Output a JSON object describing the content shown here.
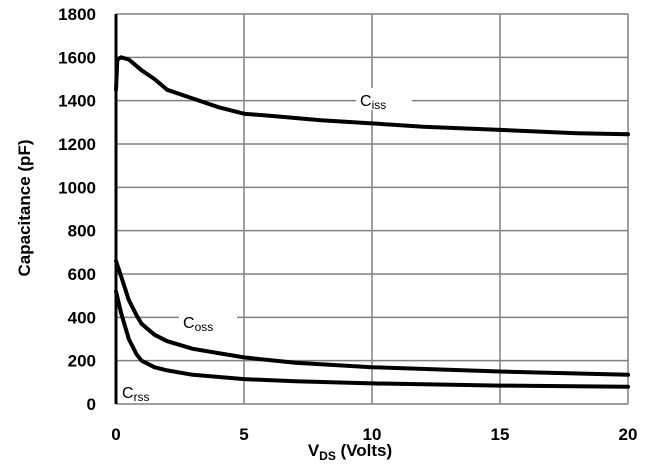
{
  "chart_data": {
    "type": "line",
    "title": "",
    "xlabel": {
      "main": "V",
      "sub": "DS",
      "rest": " (Volts)"
    },
    "ylabel": "Capacitance (pF)",
    "xlim": [
      0,
      20
    ],
    "ylim": [
      0,
      1800
    ],
    "x_ticks": [
      "0",
      "5",
      "10",
      "15",
      "20"
    ],
    "y_ticks": [
      "0",
      "200",
      "400",
      "600",
      "800",
      "1000",
      "1200",
      "1400",
      "1600",
      "1800"
    ],
    "grid": true,
    "legend": "inline labels",
    "colors": {
      "line": "#000000",
      "grid": "#808080",
      "background": "#ffffff"
    },
    "series": [
      {
        "name": "Ciss",
        "label_main": "C",
        "label_sub": "iss",
        "points": [
          [
            0,
            1450
          ],
          [
            0.05,
            1590
          ],
          [
            0.2,
            1600
          ],
          [
            0.5,
            1590
          ],
          [
            1,
            1540
          ],
          [
            1.5,
            1500
          ],
          [
            2,
            1450
          ],
          [
            3,
            1410
          ],
          [
            4,
            1370
          ],
          [
            5,
            1340
          ],
          [
            6,
            1330
          ],
          [
            7,
            1320
          ],
          [
            8,
            1310
          ],
          [
            10,
            1295
          ],
          [
            12,
            1280
          ],
          [
            15,
            1265
          ],
          [
            18,
            1250
          ],
          [
            20,
            1245
          ]
        ]
      },
      {
        "name": "Coss",
        "label_main": "C",
        "label_sub": "oss",
        "points": [
          [
            0,
            660
          ],
          [
            0.2,
            590
          ],
          [
            0.5,
            480
          ],
          [
            0.8,
            410
          ],
          [
            1,
            370
          ],
          [
            1.5,
            320
          ],
          [
            2,
            290
          ],
          [
            3,
            255
          ],
          [
            4,
            235
          ],
          [
            5,
            215
          ],
          [
            7,
            190
          ],
          [
            10,
            170
          ],
          [
            15,
            150
          ],
          [
            20,
            135
          ]
        ]
      },
      {
        "name": "Crss",
        "label_main": "C",
        "label_sub": "rss",
        "points": [
          [
            0,
            520
          ],
          [
            0.2,
            420
          ],
          [
            0.5,
            300
          ],
          [
            0.8,
            230
          ],
          [
            1,
            200
          ],
          [
            1.5,
            170
          ],
          [
            2,
            155
          ],
          [
            3,
            135
          ],
          [
            5,
            115
          ],
          [
            7,
            105
          ],
          [
            10,
            95
          ],
          [
            15,
            85
          ],
          [
            20,
            80
          ]
        ]
      }
    ]
  }
}
